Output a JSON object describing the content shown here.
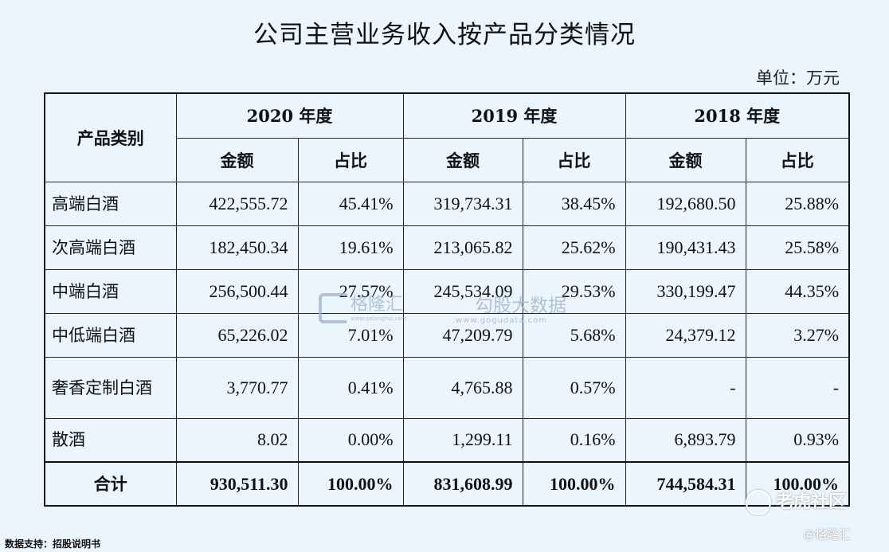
{
  "title": "公司主营业务收入按产品分类情况",
  "unit": "单位：万元",
  "header": {
    "category": "产品类别",
    "years": [
      "2020 年度",
      "2019 年度",
      "2018 年度"
    ],
    "amount": "金额",
    "ratio": "占比"
  },
  "rows": [
    {
      "category": "高端白酒",
      "values": [
        "422,555.72",
        "45.41%",
        "319,734.31",
        "38.45%",
        "192,680.50",
        "25.88%"
      ]
    },
    {
      "category": "次高端白酒",
      "values": [
        "182,450.34",
        "19.61%",
        "213,065.82",
        "25.62%",
        "190,431.43",
        "25.58%"
      ]
    },
    {
      "category": "中端白酒",
      "values": [
        "256,500.44",
        "27.57%",
        "245,534.09",
        "29.53%",
        "330,199.47",
        "44.35%"
      ]
    },
    {
      "category": "中低端白酒",
      "values": [
        "65,226.02",
        "7.01%",
        "47,209.79",
        "5.68%",
        "24,379.12",
        "3.27%"
      ]
    },
    {
      "category": "奢香定制白酒",
      "values": [
        "3,770.77",
        "0.41%",
        "4,765.88",
        "0.57%",
        "-",
        "-"
      ]
    },
    {
      "category": "散酒",
      "values": [
        "8.02",
        "0.00%",
        "1,299.11",
        "0.16%",
        "6,893.79",
        "0.93%"
      ]
    }
  ],
  "total": {
    "category": "合计",
    "values": [
      "930,511.30",
      "100.00%",
      "831,608.99",
      "100.00%",
      "744,584.31",
      "100.00%"
    ]
  },
  "footer": "数据支持：招股说明书",
  "watermark": {
    "brand1": "格隆汇",
    "url1": "www.gelonghui.com",
    "brand2": "勾股大数据",
    "url2": "www.gogudata.com",
    "community": "老虎社区",
    "handle": "@格隆汇"
  }
}
